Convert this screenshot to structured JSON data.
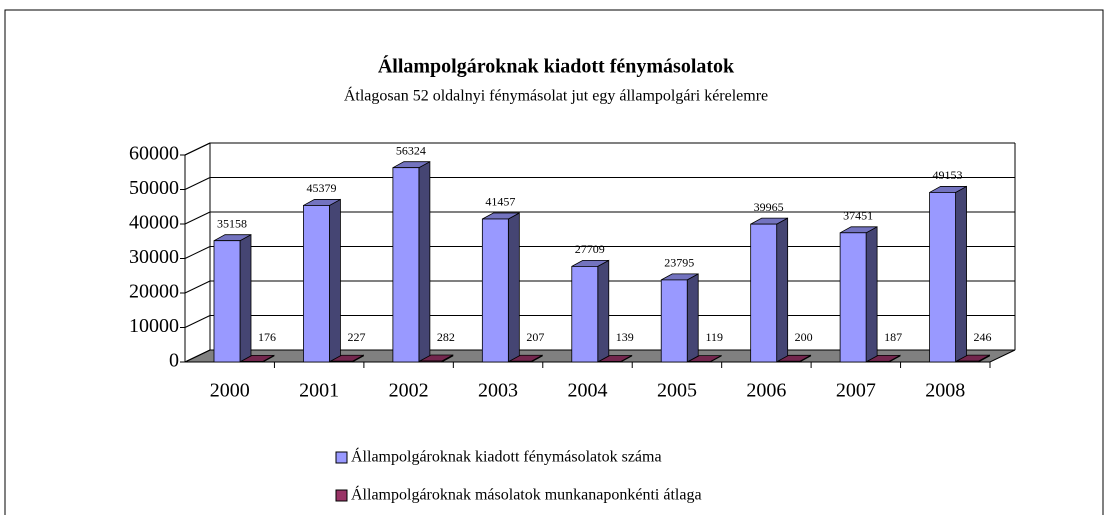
{
  "chart_data": {
    "type": "bar3d",
    "title": "Állampolgároknak kiadott fénymásolatok",
    "subtitle": "Átlagosan  52 oldalnyi fénymásolat jut egy állampolgári kérelemre",
    "categories": [
      "2000",
      "2001",
      "2002",
      "2003",
      "2004",
      "2005",
      "2006",
      "2007",
      "2008"
    ],
    "series": [
      {
        "name": "Állampolgároknak kiadott fénymásolatok száma",
        "color": "#9999ff",
        "values": [
          35158,
          45379,
          56324,
          41457,
          27709,
          23795,
          39965,
          37451,
          49153
        ]
      },
      {
        "name": "Állampolgároknak másolatok munkanaponkénti átlaga",
        "color": "#993366",
        "values": [
          176,
          227,
          282,
          207,
          139,
          119,
          200,
          187,
          246
        ]
      }
    ],
    "ylim": [
      0,
      60000
    ],
    "yticks": [
      0,
      10000,
      20000,
      30000,
      40000,
      50000,
      60000
    ],
    "grid": true
  }
}
